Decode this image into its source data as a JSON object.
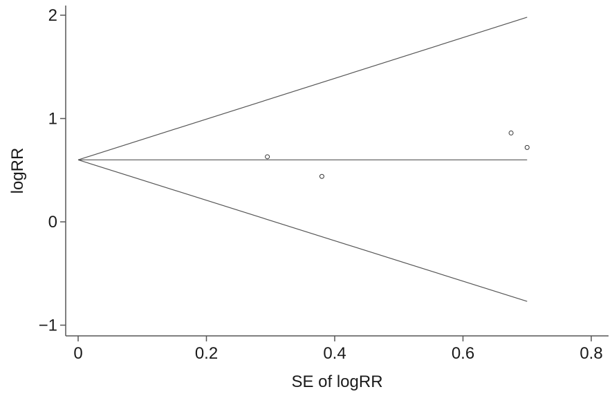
{
  "chart_data": {
    "type": "scatter",
    "title": "",
    "xlabel": "SE of logRR",
    "ylabel": "logRR",
    "xlim": [
      -0.02,
      0.82
    ],
    "ylim": [
      -1.1,
      2.1
    ],
    "xticks": [
      0,
      0.2,
      0.4,
      0.6,
      0.8
    ],
    "xtick_labels": [
      "0",
      "0.2",
      "0.4",
      "0.6",
      "0.8"
    ],
    "yticks": [
      -1,
      0,
      1,
      2
    ],
    "ytick_labels": [
      "−1",
      "0",
      "1",
      "2"
    ],
    "grid": false,
    "points": [
      {
        "x": 0.295,
        "y": 0.63
      },
      {
        "x": 0.38,
        "y": 0.44
      },
      {
        "x": 0.675,
        "y": 0.86
      },
      {
        "x": 0.7,
        "y": 0.72
      }
    ],
    "pooled_estimate": 0.6,
    "funnel": {
      "apex_se": 0,
      "max_se": 0.7,
      "upper_at_max": 1.98,
      "lower_at_max": -0.77
    }
  }
}
